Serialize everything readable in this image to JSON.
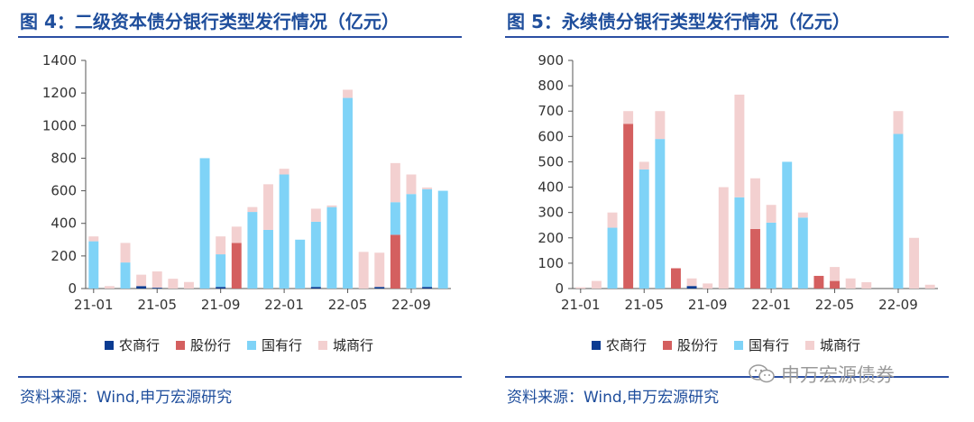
{
  "colors": {
    "title": "#1f4e9c",
    "rule": "#2b4fa3",
    "series": [
      "#0b3b91",
      "#d45f5f",
      "#7fd3f7",
      "#f3d0d0"
    ]
  },
  "left": {
    "title": "图 4：二级资本债分银行类型发行情况（亿元）",
    "source": "资料来源：Wind,申万宏源研究"
  },
  "right": {
    "title": "图 5：永续债分银行类型发行情况（亿元）",
    "source": "资料来源：Wind,申万宏源研究"
  },
  "watermark": {
    "text": "申万宏源债券",
    "icon": "wechat-icon"
  },
  "chart_data": [
    {
      "type": "bar",
      "stacked": true,
      "ylim": [
        0,
        1400
      ],
      "yticks": [
        0,
        200,
        400,
        600,
        800,
        1000,
        1200,
        1400
      ],
      "xtick_labels": [
        {
          "index": 0,
          "label": "21-01"
        },
        {
          "index": 4,
          "label": "21-05"
        },
        {
          "index": 8,
          "label": "21-09"
        },
        {
          "index": 12,
          "label": "22-01"
        },
        {
          "index": 16,
          "label": "22-05"
        },
        {
          "index": 20,
          "label": "22-09"
        }
      ],
      "categories": [
        "21-01",
        "21-02",
        "21-03",
        "21-04",
        "21-05",
        "21-06",
        "21-07",
        "21-08",
        "21-09",
        "21-10",
        "21-11",
        "21-12",
        "22-01",
        "22-02",
        "22-03",
        "22-04",
        "22-05",
        "22-06",
        "22-07",
        "22-08",
        "22-09",
        "22-10",
        "22-11"
      ],
      "legend_position": "bottom",
      "series": [
        {
          "name": "农商行",
          "values": [
            0,
            0,
            0,
            15,
            5,
            0,
            0,
            0,
            10,
            0,
            0,
            0,
            0,
            0,
            10,
            0,
            0,
            0,
            10,
            0,
            0,
            10,
            0
          ]
        },
        {
          "name": "股份行",
          "values": [
            0,
            0,
            0,
            0,
            0,
            0,
            0,
            0,
            0,
            280,
            0,
            0,
            0,
            0,
            0,
            0,
            0,
            0,
            0,
            330,
            0,
            0,
            0
          ]
        },
        {
          "name": "国有行",
          "values": [
            290,
            0,
            160,
            0,
            0,
            0,
            0,
            800,
            200,
            0,
            470,
            360,
            700,
            300,
            400,
            500,
            1170,
            0,
            0,
            200,
            580,
            600,
            600
          ]
        },
        {
          "name": "城商行",
          "values": [
            30,
            15,
            120,
            70,
            100,
            60,
            40,
            0,
            110,
            100,
            30,
            280,
            35,
            0,
            80,
            10,
            50,
            225,
            210,
            240,
            120,
            10,
            0
          ]
        }
      ]
    },
    {
      "type": "bar",
      "stacked": true,
      "ylim": [
        0,
        900
      ],
      "yticks": [
        0,
        100,
        200,
        300,
        400,
        500,
        600,
        700,
        800,
        900
      ],
      "xtick_labels": [
        {
          "index": 0,
          "label": "21-01"
        },
        {
          "index": 4,
          "label": "21-05"
        },
        {
          "index": 8,
          "label": "21-09"
        },
        {
          "index": 12,
          "label": "22-01"
        },
        {
          "index": 16,
          "label": "22-05"
        },
        {
          "index": 20,
          "label": "22-09"
        }
      ],
      "categories": [
        "21-01",
        "21-02",
        "21-03",
        "21-04",
        "21-05",
        "21-06",
        "21-07",
        "21-08",
        "21-09",
        "21-10",
        "21-11",
        "21-12",
        "22-01",
        "22-02",
        "22-03",
        "22-04",
        "22-05",
        "22-06",
        "22-07",
        "22-08",
        "22-09",
        "22-10",
        "22-11"
      ],
      "legend_position": "bottom",
      "series": [
        {
          "name": "农商行",
          "values": [
            0,
            0,
            0,
            0,
            0,
            0,
            0,
            10,
            0,
            0,
            0,
            0,
            0,
            0,
            0,
            0,
            0,
            0,
            0,
            0,
            0,
            0,
            0
          ]
        },
        {
          "name": "股份行",
          "values": [
            0,
            0,
            0,
            650,
            0,
            0,
            80,
            0,
            0,
            0,
            0,
            235,
            0,
            0,
            0,
            50,
            30,
            0,
            0,
            0,
            0,
            0,
            0
          ]
        },
        {
          "name": "国有行",
          "values": [
            0,
            0,
            240,
            0,
            470,
            590,
            0,
            0,
            0,
            0,
            360,
            0,
            260,
            500,
            280,
            0,
            0,
            0,
            0,
            0,
            610,
            0,
            0
          ]
        },
        {
          "name": "城商行",
          "values": [
            5,
            30,
            60,
            50,
            30,
            110,
            0,
            30,
            20,
            400,
            405,
            200,
            70,
            0,
            20,
            0,
            55,
            40,
            25,
            0,
            90,
            200,
            15
          ]
        }
      ]
    }
  ]
}
